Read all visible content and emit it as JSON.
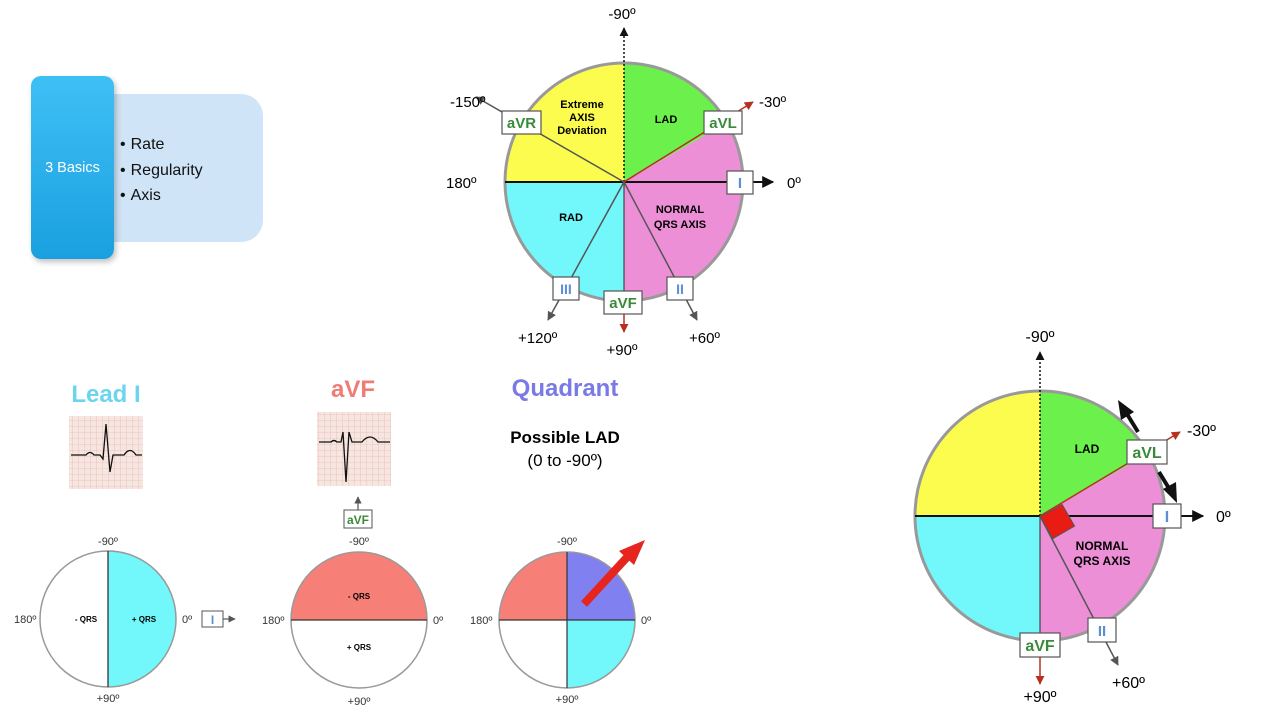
{
  "basics": {
    "title": "3 Basics",
    "items": [
      "Rate",
      "Regularity",
      "Axis"
    ]
  },
  "axis_wheel": {
    "top_angle": "-90º",
    "angle_neg150": "-150º",
    "angle_neg30": "-30º",
    "angle_180": "180º",
    "angle_0": "0º",
    "angle_120": "+120º",
    "angle_90": "+90º",
    "angle_60": "+60º",
    "extreme_line1": "Extreme",
    "extreme_line2": "AXIS",
    "extreme_line3": "Deviation",
    "lad": "LAD",
    "rad": "RAD",
    "normal_line1": "NORMAL",
    "normal_line2": "QRS AXIS",
    "lead_avr": "aVR",
    "lead_avl": "aVL",
    "lead_i": "I",
    "lead_iii": "III",
    "lead_avf": "aVF",
    "lead_ii": "II"
  },
  "method": {
    "lead_i_title": "Lead I",
    "avf_title": "aVF",
    "quadrant_title": "Quadrant",
    "possible_lad": "Possible LAD",
    "range": "(0 to -90º)",
    "neg90": "-90º",
    "pos90": "+90º",
    "deg180": "180º",
    "deg0": "0º",
    "neg_qrs": "- QRS",
    "pos_qrs": "+ QRS",
    "lead_i": "I",
    "lead_avf": "aVF"
  },
  "right_wheel": {
    "top_angle": "-90º",
    "angle_neg30": "-30º",
    "angle_0": "0º",
    "angle_90": "+90º",
    "angle_60": "+60º",
    "lad": "LAD",
    "normal_line1": "NORMAL",
    "normal_line2": "QRS AXIS",
    "lead_avl": "aVL",
    "lead_i": "I",
    "lead_avf": "aVF",
    "lead_ii": "II"
  },
  "colors": {
    "yellow": "#fcfc4f",
    "green": "#6cf04c",
    "pink": "#ec8fd6",
    "cyan": "#72f7fa",
    "lead_i_title": "#6dd4ee",
    "avf_title": "#f07c76",
    "quadrant_title": "#7a7ae6",
    "avf_neg": "#f68078",
    "quadrant_blue": "#8080f0",
    "arrow_red": "#e5251e",
    "lead_green": "#3b8a3b",
    "lead_blue": "#5a8fd0"
  }
}
